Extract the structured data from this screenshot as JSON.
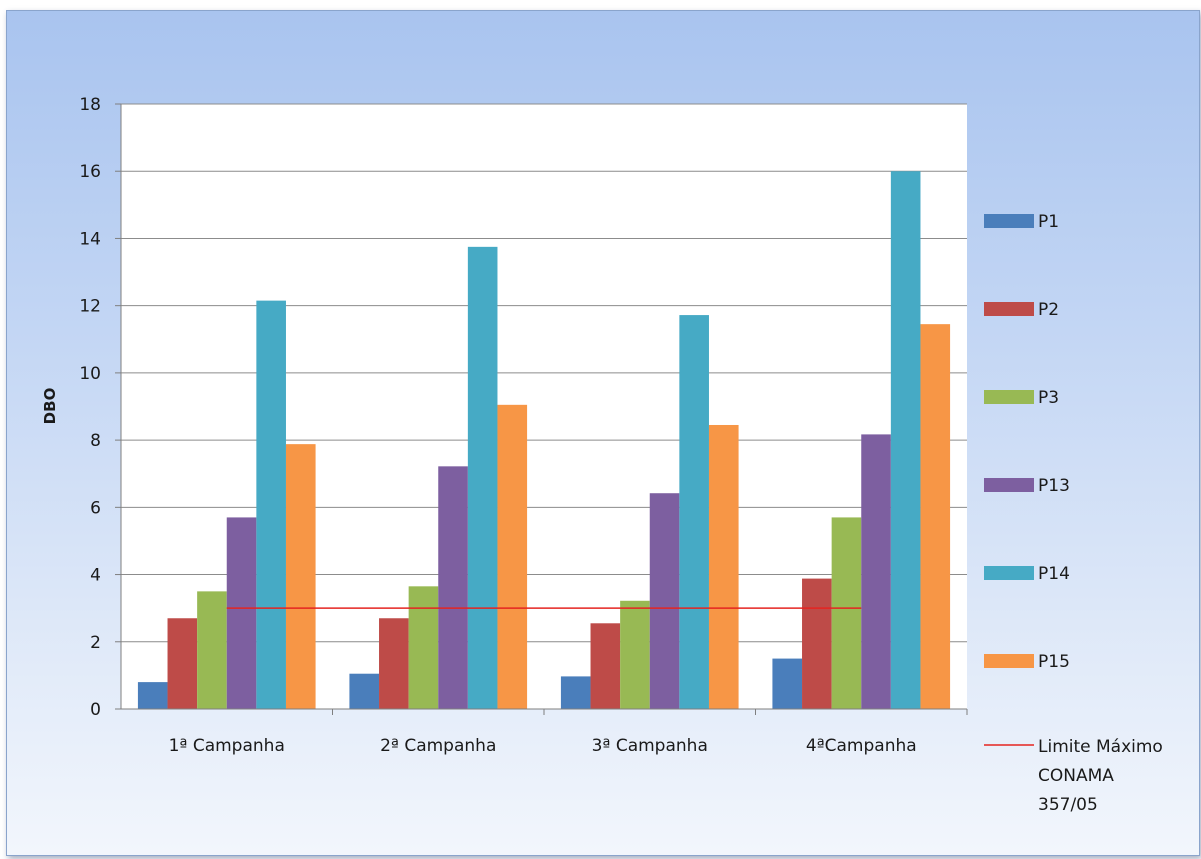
{
  "chart_data": {
    "type": "bar",
    "title": "",
    "xlabel": "",
    "ylabel": "DBO",
    "ylim": [
      0,
      18
    ],
    "yticks": [
      0,
      2,
      4,
      6,
      8,
      10,
      12,
      14,
      16,
      18
    ],
    "grid": true,
    "legend_position": "right",
    "categories": [
      "1ª Campanha",
      "2ª Campanha",
      "3ª Campanha",
      "4ªCampanha"
    ],
    "series": [
      {
        "name": "P1",
        "color": "#4a7ebb",
        "values": [
          0.8,
          1.05,
          0.97,
          1.5
        ]
      },
      {
        "name": "P2",
        "color": "#be4b48",
        "values": [
          2.7,
          2.7,
          2.55,
          3.88
        ]
      },
      {
        "name": "P3",
        "color": "#98b954",
        "values": [
          3.5,
          3.65,
          3.22,
          5.7
        ]
      },
      {
        "name": "P13",
        "color": "#7d5fa0",
        "values": [
          5.7,
          7.22,
          6.42,
          8.17
        ]
      },
      {
        "name": "P14",
        "color": "#46aac5",
        "values": [
          12.15,
          13.75,
          11.72,
          16.0
        ]
      },
      {
        "name": "P15",
        "color": "#f79646",
        "values": [
          7.88,
          9.05,
          8.45,
          11.45
        ]
      }
    ],
    "reference_line": {
      "name_lines": [
        "Limite Máximo",
        "CONAMA",
        "357/05"
      ],
      "value": 3,
      "color": "#e52420"
    }
  }
}
